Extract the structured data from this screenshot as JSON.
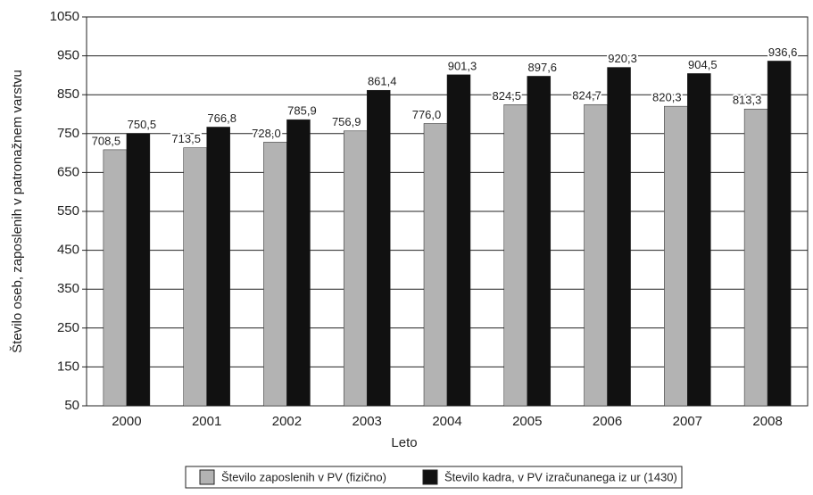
{
  "chart_data": {
    "type": "bar",
    "x_label": "Leto",
    "y_label": "Število oseb, zaposlenih v patronažnem varstvu",
    "categories": [
      "2000",
      "2001",
      "2002",
      "2003",
      "2004",
      "2005",
      "2006",
      "2007",
      "2008"
    ],
    "series": [
      {
        "name": "Število zaposlenih v PV (fizično)",
        "color": "#b3b3b3",
        "values": [
          708.5,
          713.5,
          728.0,
          756.9,
          776.0,
          824.5,
          824.7,
          820.3,
          813.3
        ],
        "value_labels": [
          "708,5",
          "713,5",
          "728,0",
          "756,9",
          "776,0",
          "824,5",
          "824,7",
          "820,3",
          "813,3"
        ]
      },
      {
        "name": "Število kadra, v PV izračunanega iz ur (1430)",
        "color": "#111111",
        "values": [
          750.5,
          766.8,
          785.9,
          861.4,
          901.3,
          897.6,
          920.3,
          904.5,
          936.6
        ],
        "value_labels": [
          "750,5",
          "766,8",
          "785,9",
          "861,4",
          "901,3",
          "897,6",
          "920,3",
          "904,5",
          "936,6"
        ]
      }
    ],
    "ylim": [
      50,
      1050
    ],
    "yticks": [
      50,
      150,
      250,
      350,
      450,
      550,
      650,
      750,
      850,
      950,
      1050
    ],
    "grid": true
  }
}
